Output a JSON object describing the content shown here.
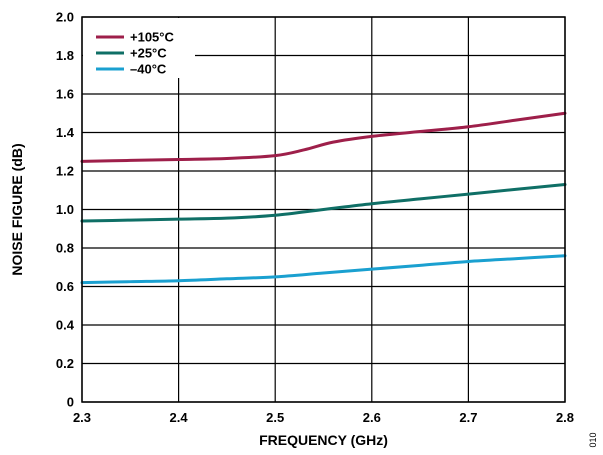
{
  "chart_data": {
    "type": "line",
    "xlabel": "FREQUENCY (GHz)",
    "ylabel": "NOISE FIGURE (dB)",
    "xlim": [
      2.3,
      2.8
    ],
    "ylim": [
      0,
      2.0
    ],
    "xticks": [
      "2.3",
      "2.4",
      "2.5",
      "2.6",
      "2.7",
      "2.8"
    ],
    "yticks": [
      "0",
      "0.2",
      "0.4",
      "0.6",
      "0.8",
      "1.0",
      "1.2",
      "1.4",
      "1.6",
      "1.8",
      "2.0"
    ],
    "grid": true,
    "legend_position": "top-left",
    "figure_id": "010",
    "series": [
      {
        "name": "+105°C",
        "color": "#9e1f4a",
        "x": [
          2.3,
          2.35,
          2.4,
          2.45,
          2.5,
          2.53,
          2.56,
          2.6,
          2.65,
          2.7,
          2.75,
          2.8
        ],
        "y": [
          1.25,
          1.255,
          1.26,
          1.265,
          1.28,
          1.31,
          1.35,
          1.38,
          1.405,
          1.43,
          1.465,
          1.5
        ]
      },
      {
        "name": "+25°C",
        "color": "#0f6f66",
        "x": [
          2.3,
          2.35,
          2.4,
          2.45,
          2.5,
          2.55,
          2.6,
          2.65,
          2.7,
          2.75,
          2.8
        ],
        "y": [
          0.94,
          0.945,
          0.95,
          0.955,
          0.97,
          1.0,
          1.03,
          1.055,
          1.08,
          1.105,
          1.13
        ]
      },
      {
        "name": "–40°C",
        "color": "#1aa0d0",
        "x": [
          2.3,
          2.35,
          2.4,
          2.45,
          2.5,
          2.55,
          2.6,
          2.65,
          2.7,
          2.75,
          2.8
        ],
        "y": [
          0.62,
          0.625,
          0.63,
          0.64,
          0.65,
          0.67,
          0.69,
          0.71,
          0.73,
          0.745,
          0.76
        ]
      }
    ]
  }
}
